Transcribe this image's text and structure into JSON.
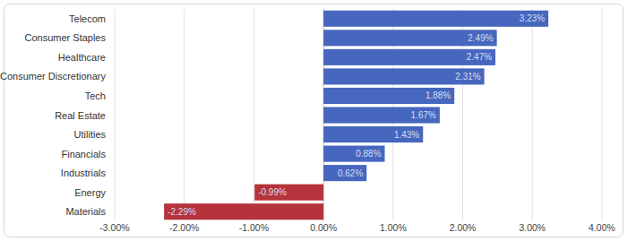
{
  "chart_data": {
    "type": "bar",
    "orientation": "horizontal",
    "categories": [
      "Telecom",
      "Consumer Staples",
      "Healthcare",
      "Consumer Discretionary",
      "Tech",
      "Real Estate",
      "Utilities",
      "Financials",
      "Industrials",
      "Energy",
      "Materials"
    ],
    "values": [
      3.23,
      2.49,
      2.47,
      2.31,
      1.88,
      1.67,
      1.43,
      0.88,
      0.62,
      -0.99,
      -2.29
    ],
    "value_labels": [
      "3.23%",
      "2.49%",
      "2.47%",
      "2.31%",
      "1.88%",
      "1.67%",
      "1.43%",
      "0.88%",
      "0.62%",
      "-0.99%",
      "-2.29%"
    ],
    "colors": [
      "#4767bf",
      "#4767bf",
      "#4767bf",
      "#4767bf",
      "#4767bf",
      "#4767bf",
      "#4767bf",
      "#4767bf",
      "#4767bf",
      "#b5333a",
      "#b5333a"
    ],
    "xlim": [
      -3,
      4
    ],
    "xticks": [
      {
        "value": -3,
        "label": "-3.00%"
      },
      {
        "value": -2,
        "label": "-2.00%"
      },
      {
        "value": -1,
        "label": "-1.00%"
      },
      {
        "value": 0,
        "label": "0.00%"
      },
      {
        "value": 1,
        "label": "1.00%"
      },
      {
        "value": 2,
        "label": "2.00%"
      },
      {
        "value": 3,
        "label": "3.00%"
      },
      {
        "value": 4,
        "label": "4.00%"
      }
    ],
    "grid": true,
    "data_labels": true
  }
}
